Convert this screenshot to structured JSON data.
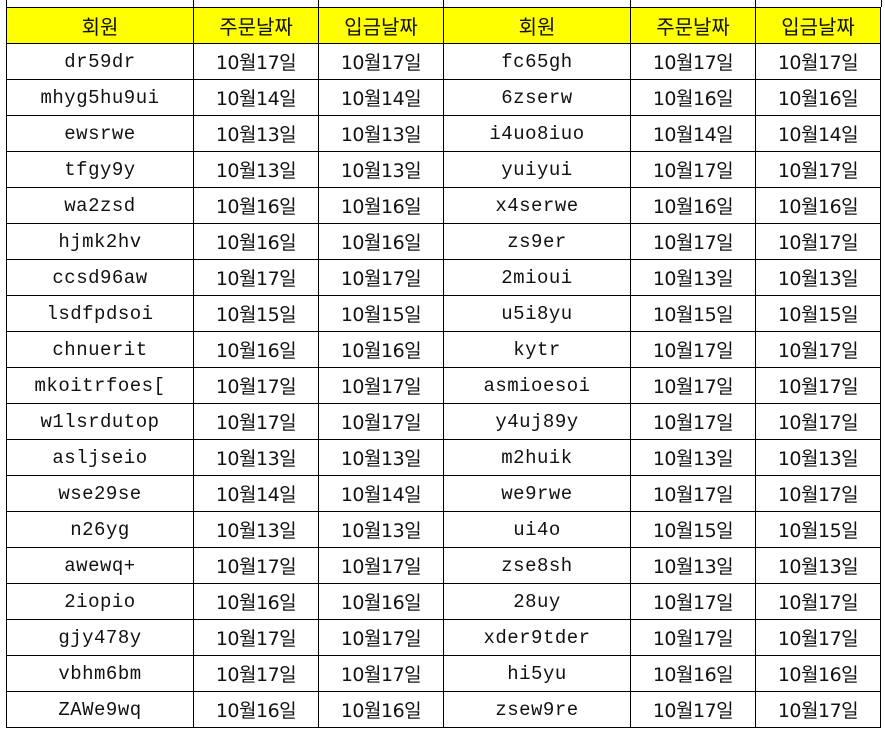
{
  "headers": [
    "회원",
    "주문날짜",
    "입금날짜",
    "회원",
    "주문날짜",
    "입금날짜"
  ],
  "colors": {
    "header_bg": "#ffff00",
    "grid": "#000000"
  },
  "rows": [
    [
      "dr59dr",
      "10월17일",
      "10월17일",
      "fc65gh",
      "10월17일",
      "10월17일"
    ],
    [
      "mhyg5hu9ui",
      "10월14일",
      "10월14일",
      "6zserw",
      "10월16일",
      "10월16일"
    ],
    [
      "ewsrwe",
      "10월13일",
      "10월13일",
      "i4uo8iuo",
      "10월14일",
      "10월14일"
    ],
    [
      "tfgy9y",
      "10월13일",
      "10월13일",
      "yuiyui",
      "10월17일",
      "10월17일"
    ],
    [
      "wa2zsd",
      "10월16일",
      "10월16일",
      "x4serwe",
      "10월16일",
      "10월16일"
    ],
    [
      "hjmk2hv",
      "10월16일",
      "10월16일",
      "zs9er",
      "10월17일",
      "10월17일"
    ],
    [
      "ccsd96aw",
      "10월17일",
      "10월17일",
      "2mioui",
      "10월13일",
      "10월13일"
    ],
    [
      "lsdfpdsoi",
      "10월15일",
      "10월15일",
      "u5i8yu",
      "10월15일",
      "10월15일"
    ],
    [
      "chnuerit",
      "10월16일",
      "10월16일",
      "kytr",
      "10월17일",
      "10월17일"
    ],
    [
      "mkoitrfoes[",
      "10월17일",
      "10월17일",
      "asmioesoi",
      "10월17일",
      "10월17일"
    ],
    [
      "w1lsrdutop",
      "10월17일",
      "10월17일",
      "y4uj89y",
      "10월17일",
      "10월17일"
    ],
    [
      "asljseio",
      "10월13일",
      "10월13일",
      "m2huik",
      "10월13일",
      "10월13일"
    ],
    [
      "wse29se",
      "10월14일",
      "10월14일",
      "we9rwe",
      "10월17일",
      "10월17일"
    ],
    [
      "n26yg",
      "10월13일",
      "10월13일",
      "ui4o",
      "10월15일",
      "10월15일"
    ],
    [
      "awewq+",
      "10월17일",
      "10월17일",
      "zse8sh",
      "10월13일",
      "10월13일"
    ],
    [
      "2iopio",
      "10월16일",
      "10월16일",
      "28uy",
      "10월17일",
      "10월17일"
    ],
    [
      "gjy478y",
      "10월17일",
      "10월17일",
      "xder9tder",
      "10월17일",
      "10월17일"
    ],
    [
      "vbhm6bm",
      "10월17일",
      "10월17일",
      "hi5yu",
      "10월16일",
      "10월16일"
    ],
    [
      "ZAWe9wq",
      "10월16일",
      "10월16일",
      "zsew9re",
      "10월17일",
      "10월17일"
    ]
  ]
}
